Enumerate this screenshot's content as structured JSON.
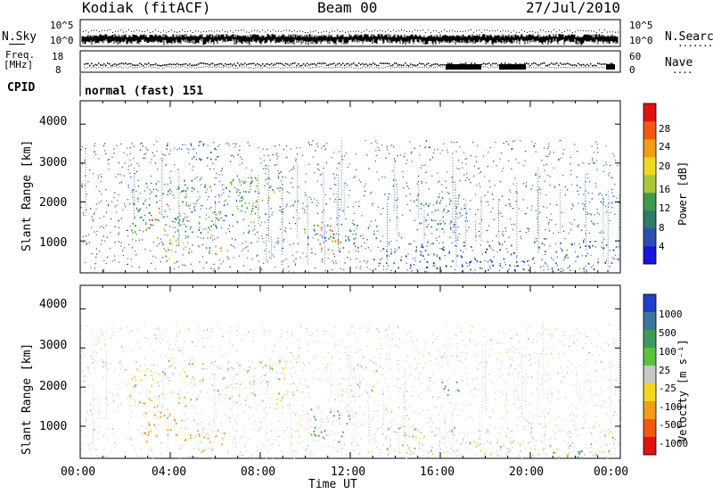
{
  "header": {
    "station": "Kodiak (fitACF)",
    "beam": "Beam 00",
    "date": "27/Jul/2010"
  },
  "noise_panel": {
    "left_label": "N.Sky",
    "right_label": "N.Search",
    "left_ticks": [
      "10^5",
      "10^0"
    ],
    "right_ticks": [
      "10^5",
      "10^0"
    ],
    "right_dots": "·······"
  },
  "freq_panel": {
    "left_label_1": "Freq.",
    "left_label_2": "[MHz]",
    "right_label": "Nave",
    "left_ticks": [
      "18",
      "8"
    ],
    "right_ticks": [
      "60",
      "0"
    ],
    "right_dots": "····"
  },
  "cpid": {
    "label": "CPID",
    "value": "normal (fast) 151"
  },
  "x_axis": {
    "ticks": [
      "00:00",
      "04:00",
      "08:00",
      "12:00",
      "16:00",
      "20:00",
      "00:00"
    ],
    "title": "Time UT"
  },
  "chart_data": [
    {
      "type": "heatmap",
      "quantity": "power",
      "ylabel": "Slant Range [km]",
      "y_ticks": [
        "4000",
        "3000",
        "2000",
        "1000"
      ],
      "y_tick_values": [
        4000,
        3000,
        2000,
        1000
      ],
      "ylim": [
        180,
        4600
      ],
      "xlim_hours": [
        0,
        24
      ],
      "colorbar_label": "Power [dB]",
      "colorbar_ticks": [
        "28",
        "24",
        "20",
        "16",
        "12",
        "8",
        "4"
      ],
      "colorbar_values": [
        28,
        24,
        20,
        16,
        12,
        8,
        4
      ],
      "colorbar_range": [
        0,
        32
      ],
      "colorbar_colors": [
        "#1515e0",
        "#2a4fb0",
        "#2f7a6a",
        "#3c9a4c",
        "#a8c83a",
        "#f0d81c",
        "#f39c18",
        "#f25a12",
        "#e01212"
      ],
      "echo_regions": [
        {
          "t_start": 2.2,
          "t_end": 7.8,
          "r_start": 1200,
          "r_end": 2600,
          "level": 12
        },
        {
          "t_start": 2.8,
          "t_end": 3.6,
          "r_start": 1200,
          "r_end": 1900,
          "level": 26
        },
        {
          "t_start": 3.4,
          "t_end": 6.6,
          "r_start": 450,
          "r_end": 1200,
          "level": 16
        },
        {
          "t_start": 6.5,
          "t_end": 9.5,
          "r_start": 1700,
          "r_end": 2700,
          "level": 14
        },
        {
          "t_start": 10.5,
          "t_end": 11.8,
          "r_start": 700,
          "r_end": 1450,
          "level": 26
        },
        {
          "t_start": 9.5,
          "t_end": 13.2,
          "r_start": 700,
          "r_end": 1450,
          "level": 12
        },
        {
          "t_start": 14.8,
          "t_end": 17.2,
          "r_start": 1300,
          "r_end": 2200,
          "level": 9
        },
        {
          "t_start": 13.0,
          "t_end": 23.8,
          "r_start": 250,
          "r_end": 1000,
          "level": 6
        },
        {
          "t_start": 4.0,
          "t_end": 6.0,
          "r_start": 3100,
          "r_end": 3600,
          "level": 10
        }
      ]
    },
    {
      "type": "heatmap",
      "quantity": "velocity",
      "ylabel": "Slant Range [km]",
      "y_ticks": [
        "4000",
        "3000",
        "2000",
        "1000"
      ],
      "y_tick_values": [
        4000,
        3000,
        2000,
        1000
      ],
      "ylim": [
        180,
        4600
      ],
      "xlim_hours": [
        0,
        24
      ],
      "colorbar_label": "Velocity [m s⁻¹]",
      "colorbar_ticks": [
        "1000",
        "500",
        "100",
        "25",
        "-25",
        "-100",
        "-500",
        "-1000"
      ],
      "colorbar_colors": [
        "#2040c8",
        "#3a78a0",
        "#3f9a5a",
        "#5ac43a",
        "#c8c8c8",
        "#f0d81c",
        "#f39c18",
        "#f25a12",
        "#e01212"
      ],
      "echo_regions": [
        {
          "t_start": 2.2,
          "t_end": 9.5,
          "r_start": 1600,
          "r_end": 2700,
          "level": 0
        },
        {
          "t_start": 2.8,
          "t_end": 4.8,
          "r_start": 600,
          "r_end": 1800,
          "level": -400
        },
        {
          "t_start": 4.6,
          "t_end": 6.4,
          "r_start": 350,
          "r_end": 1000,
          "level": -200
        },
        {
          "t_start": 10.2,
          "t_end": 12.2,
          "r_start": 600,
          "r_end": 1450,
          "level": 300
        },
        {
          "t_start": 12.0,
          "t_end": 13.2,
          "r_start": 1900,
          "r_end": 2800,
          "level": 0
        },
        {
          "t_start": 16.0,
          "t_end": 17.0,
          "r_start": 1600,
          "r_end": 2200,
          "level": 150
        },
        {
          "t_start": 13.5,
          "t_end": 23.8,
          "r_start": 250,
          "r_end": 1000,
          "level": 0
        },
        {
          "t_start": 20.0,
          "t_end": 22.6,
          "r_start": 180,
          "r_end": 420,
          "level": 120
        }
      ]
    }
  ]
}
